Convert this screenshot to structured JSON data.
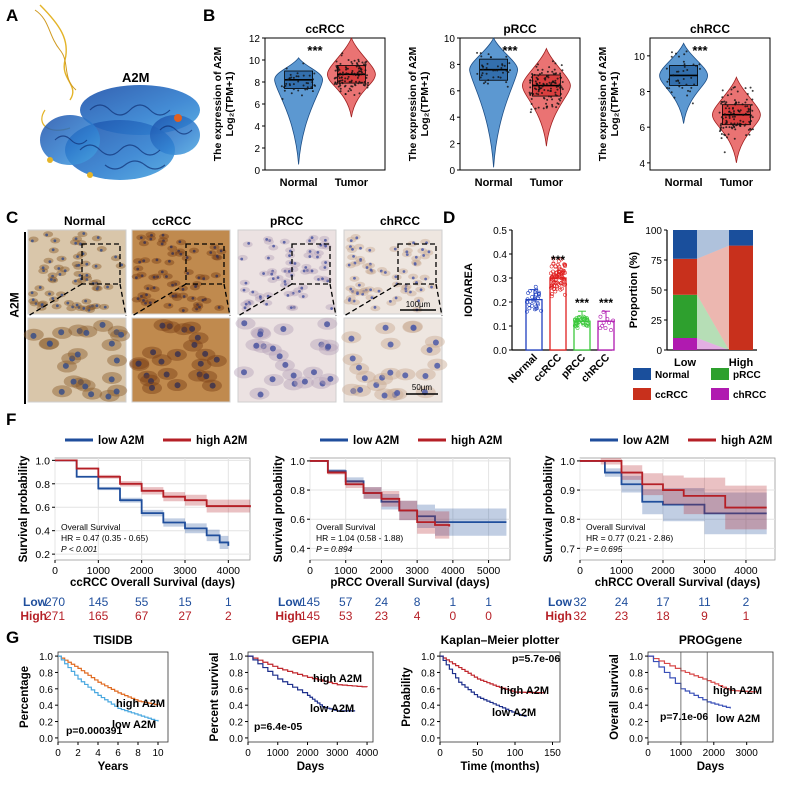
{
  "panel_labels": [
    "A",
    "B",
    "C",
    "D",
    "E",
    "F",
    "G"
  ],
  "panelA": {
    "protein_label": "A2M"
  },
  "panelB": {
    "ylabel_line1": "The expression of A2M",
    "ylabel_line2": "Log₂(TPM+1)",
    "significance": "***",
    "plots": [
      {
        "title": "ccRCC",
        "yticks": [
          "0",
          "2",
          "4",
          "6",
          "8",
          "10",
          "12"
        ],
        "categories": [
          "Normal",
          "Tumor"
        ]
      },
      {
        "title": "pRCC",
        "yticks": [
          "0",
          "2",
          "4",
          "6",
          "8",
          "10"
        ],
        "categories": [
          "Normal",
          "Tumor"
        ]
      },
      {
        "title": "chRCC",
        "yticks": [
          "4",
          "6",
          "8",
          "10"
        ],
        "categories": [
          "Normal",
          "Tumor"
        ]
      }
    ]
  },
  "panelC": {
    "row_label": "A2M",
    "columns": [
      "Normal",
      "ccRCC",
      "pRCC",
      "chRCC"
    ],
    "scale_top": "100μm",
    "scale_bottom": "50μm"
  },
  "chart_data": [
    {
      "type": "bar",
      "panel": "D",
      "ylabel": "IOD/AREA",
      "categories": [
        "Normal",
        "ccRCC",
        "pRCC",
        "chRCC"
      ],
      "values": [
        0.21,
        0.3,
        0.12,
        0.12
      ],
      "ylim": [
        0.0,
        0.5
      ],
      "yticks": [
        "0.0",
        "0.1",
        "0.2",
        "0.3",
        "0.4",
        "0.5"
      ],
      "annotations": [
        "",
        "***",
        "***",
        "***"
      ],
      "colors": [
        "#1f3fbf",
        "#e02020",
        "#3cc83c",
        "#b01ab0"
      ]
    },
    {
      "type": "bar",
      "panel": "E",
      "ylabel": "Proportion (%)",
      "categories": [
        "Low",
        "High"
      ],
      "stacked": true,
      "yticks": [
        "0",
        "25",
        "50",
        "75",
        "100"
      ],
      "series": [
        {
          "name": "chRCC",
          "values": [
            10,
            0
          ]
        },
        {
          "name": "pRCC",
          "values": [
            36,
            0
          ]
        },
        {
          "name": "ccRCC",
          "values": [
            30,
            87
          ]
        },
        {
          "name": "Normal",
          "values": [
            24,
            13
          ]
        }
      ],
      "legend": [
        "Normal",
        "pRCC",
        "ccRCC",
        "chRCC"
      ]
    }
  ],
  "panelF": {
    "ylabel": "Survival probability",
    "legend_low": "low A2M",
    "legend_high": "high A2M",
    "stats_title": "Overall Survival",
    "row_low": "Low",
    "row_high": "High",
    "plots": [
      {
        "xlabel": "ccRCC Overall Survival (days)",
        "hr": "HR = 0.47 (0.35 - 0.65)",
        "p": "P < 0.001",
        "xticks": [
          "0",
          "1000",
          "2000",
          "3000",
          "4000"
        ],
        "yticks": [
          "0.2",
          "0.4",
          "0.6",
          "0.8",
          "1.0"
        ],
        "risk_low": [
          "270",
          "145",
          "55",
          "15",
          "1"
        ],
        "risk_high": [
          "271",
          "165",
          "67",
          "27",
          "2"
        ]
      },
      {
        "xlabel": "pRCC Overall Survival (days)",
        "hr": "HR = 1.04 (0.58 - 1.88)",
        "p": "P = 0.894",
        "xticks": [
          "0",
          "1000",
          "2000",
          "3000",
          "4000",
          "5000"
        ],
        "yticks": [
          "0.4",
          "0.6",
          "0.8",
          "1.0"
        ],
        "risk_low": [
          "145",
          "57",
          "24",
          "8",
          "1",
          "1"
        ],
        "risk_high": [
          "145",
          "53",
          "23",
          "4",
          "0",
          "0"
        ]
      },
      {
        "xlabel": "chRCC Overall Survival (days)",
        "hr": "HR = 0.77 (0.21 - 2.86)",
        "p": "P = 0.695",
        "xticks": [
          "0",
          "1000",
          "2000",
          "3000",
          "4000"
        ],
        "yticks": [
          "0.7",
          "0.8",
          "0.9",
          "1.0"
        ],
        "risk_low": [
          "32",
          "24",
          "17",
          "11",
          "2"
        ],
        "risk_high": [
          "32",
          "23",
          "18",
          "9",
          "1"
        ]
      }
    ]
  },
  "panelG": {
    "high_label": "high A2M",
    "low_label": "low A2M",
    "plots": [
      {
        "title": "TISIDB",
        "ylabel": "Percentage",
        "xlabel": "Years",
        "xticks": [
          "0",
          "2",
          "4",
          "6",
          "8",
          "10"
        ],
        "yticks": [
          "0.0",
          "0.2",
          "0.4",
          "0.6",
          "0.8",
          "1.0"
        ],
        "pvalue": "p=0.000391"
      },
      {
        "title": "GEPIA",
        "ylabel": "Percent survival",
        "xlabel": "Days",
        "xticks": [
          "0",
          "1000",
          "2000",
          "3000",
          "4000"
        ],
        "yticks": [
          "0.0",
          "0.2",
          "0.4",
          "0.6",
          "0.8",
          "1.0"
        ],
        "pvalue": "p=6.4e-05"
      },
      {
        "title": "Kaplan–Meier plotter",
        "ylabel": "Probability",
        "xlabel": "Time (months)",
        "xticks": [
          "0",
          "50",
          "100",
          "150"
        ],
        "yticks": [
          "0.0",
          "0.2",
          "0.4",
          "0.6",
          "0.8",
          "1.0"
        ],
        "pvalue": "p=5.7e-06"
      },
      {
        "title": "PROGgene",
        "ylabel": "Overall survival",
        "xlabel": "Days",
        "xticks": [
          "0",
          "1000",
          "2000",
          "3000"
        ],
        "yticks": [
          "0.0",
          "0.2",
          "0.4",
          "0.6",
          "0.8",
          "1.0"
        ],
        "pvalue": "p=7.1e-06"
      }
    ]
  }
}
